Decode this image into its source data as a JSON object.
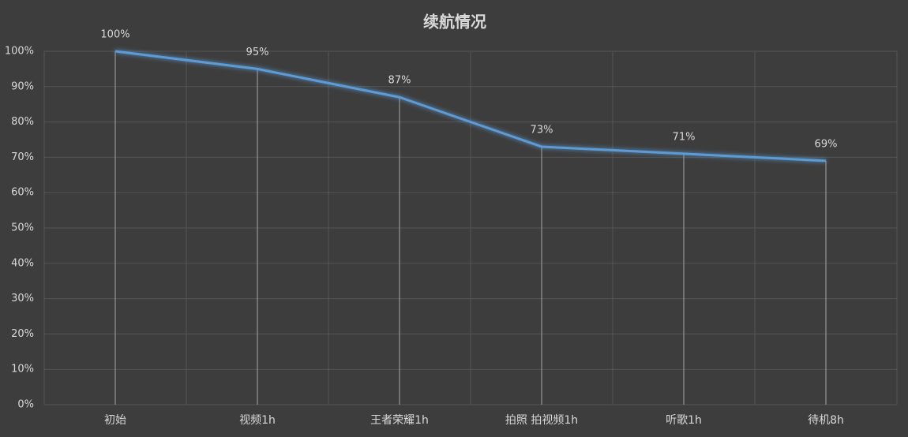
{
  "chart_data": {
    "type": "line",
    "title": "续航情况",
    "categories": [
      "初始",
      "视频1h",
      "王者荣耀1h",
      "拍照 拍视频1h",
      "听歌1h",
      "待机8h"
    ],
    "values": [
      100,
      95,
      87,
      73,
      71,
      69
    ],
    "value_labels": [
      "100%",
      "95%",
      "87%",
      "73%",
      "71%",
      "69%"
    ],
    "color": "#5b9bd5",
    "ylim": [
      0,
      100
    ],
    "yticks": [
      {
        "value": 0,
        "label": "0%"
      },
      {
        "value": 10,
        "label": "10%"
      },
      {
        "value": 20,
        "label": "20%"
      },
      {
        "value": 30,
        "label": "30%"
      },
      {
        "value": 40,
        "label": "40%"
      },
      {
        "value": 50,
        "label": "50%"
      },
      {
        "value": 60,
        "label": "60%"
      },
      {
        "value": 70,
        "label": "70%"
      },
      {
        "value": 80,
        "label": "80%"
      },
      {
        "value": 90,
        "label": "90%"
      },
      {
        "value": 100,
        "label": "100%"
      }
    ],
    "grid": true,
    "drop_lines": true
  }
}
